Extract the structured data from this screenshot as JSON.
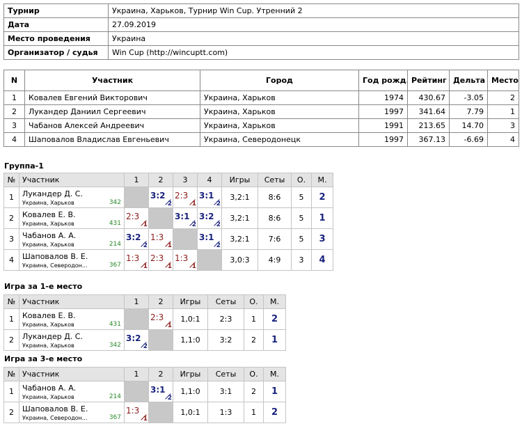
{
  "info": {
    "rows": [
      [
        "Турнир",
        "Украина, Харьков, Турнир Win Cup. Утренний 2"
      ],
      [
        "Дата",
        "27.09.2019"
      ],
      [
        "Место проведения",
        "Украина"
      ],
      [
        "Организатор / судья",
        "Win Cup (http://wincuptt.com)"
      ]
    ]
  },
  "participants": {
    "headers": [
      "N",
      "Участник",
      "Город",
      "Год рожд.",
      "Рейтинг",
      "Дельта",
      "Место"
    ],
    "rows": [
      [
        "1",
        "Ковалев Евгений Викторович",
        "Украина, Харьков",
        "1974",
        "430.67",
        "-3.05",
        "2"
      ],
      [
        "2",
        "Лукандер Даниил Сергеевич",
        "Украина, Харьков",
        "1997",
        "341.64",
        "7.79",
        "1"
      ],
      [
        "3",
        "Чабанов Алексей Андреевич",
        "Украина, Харьков",
        "1991",
        "213.65",
        "14.70",
        "3"
      ],
      [
        "4",
        "Шаповалов Владислав Евгеньевич",
        "Украина, Северодонецк",
        "1997",
        "367.13",
        "-6.69",
        "4"
      ]
    ]
  },
  "groups": [
    {
      "title": "Группа-1",
      "headers": [
        "№",
        "Участник",
        "1",
        "2",
        "3",
        "4",
        "Игры",
        "Сеты",
        "О.",
        "М."
      ],
      "rows": [
        {
          "num": "1",
          "name": "Лукандер Д. С.",
          "city": "Украина, Харьков",
          "rating": "342",
          "results": [
            null,
            {
              "score": "3:2",
              "sub": "2"
            },
            {
              "score": "2:3",
              "sub": "1"
            },
            {
              "score": "3:1",
              "sub": "2"
            }
          ],
          "games": "3,2:1",
          "sets": "8:6",
          "points": "5",
          "place": "2"
        },
        {
          "num": "2",
          "name": "Ковалев Е. В.",
          "city": "Украина, Харьков",
          "rating": "431",
          "results": [
            {
              "score": "2:3",
              "sub": "1"
            },
            null,
            {
              "score": "3:1",
              "sub": "2"
            },
            {
              "score": "3:2",
              "sub": "2"
            }
          ],
          "games": "3,2:1",
          "sets": "8:6",
          "points": "5",
          "place": "1"
        },
        {
          "num": "3",
          "name": "Чабанов А. А.",
          "city": "Украина, Харьков",
          "rating": "214",
          "results": [
            {
              "score": "3:2",
              "sub": "2"
            },
            {
              "score": "1:3",
              "sub": "1"
            },
            null,
            {
              "score": "3:1",
              "sub": "2"
            }
          ],
          "games": "3,2:1",
          "sets": "7:6",
          "points": "5",
          "place": "3"
        },
        {
          "num": "4",
          "name": "Шаповалов В. Е.",
          "city": "Украина, Северодон...",
          "rating": "367",
          "results": [
            {
              "score": "1:3",
              "sub": "1"
            },
            {
              "score": "2:3",
              "sub": "1"
            },
            {
              "score": "1:3",
              "sub": "1"
            },
            null
          ],
          "games": "3,0:3",
          "sets": "4:9",
          "points": "3",
          "place": "4"
        }
      ]
    },
    {
      "title": "Игра за 1-е место",
      "headers": [
        "№",
        "Участник",
        "1",
        "2",
        "Игры",
        "Сеты",
        "О.",
        "М."
      ],
      "rows": [
        {
          "num": "1",
          "name": "Ковалев Е. В.",
          "city": "Украина, Харьков",
          "rating": "431",
          "results": [
            null,
            {
              "score": "2:3",
              "sub": "1"
            }
          ],
          "games": "1,0:1",
          "sets": "2:3",
          "points": "1",
          "place": "2"
        },
        {
          "num": "2",
          "name": "Лукандер Д. С.",
          "city": "Украина, Харьков",
          "rating": "342",
          "results": [
            {
              "score": "3:2",
              "sub": "2"
            },
            null
          ],
          "games": "1,1:0",
          "sets": "3:2",
          "points": "2",
          "place": "1"
        }
      ]
    },
    {
      "title": "Игра за 3-е место",
      "headers": [
        "№",
        "Участник",
        "1",
        "2",
        "Игры",
        "Сеты",
        "О.",
        "М."
      ],
      "rows": [
        {
          "num": "1",
          "name": "Чабанов А. А.",
          "city": "Украина, Харьков",
          "rating": "214",
          "results": [
            null,
            {
              "score": "3:1",
              "sub": "2"
            }
          ],
          "games": "1,1:0",
          "sets": "3:1",
          "points": "2",
          "place": "1"
        },
        {
          "num": "2",
          "name": "Шаповалов В. Е.",
          "city": "Украина, Северодон...",
          "rating": "367",
          "results": [
            {
              "score": "1:3",
              "sub": "1"
            },
            null
          ],
          "games": "1,0:1",
          "sets": "1:3",
          "points": "1",
          "place": "2"
        }
      ]
    }
  ]
}
